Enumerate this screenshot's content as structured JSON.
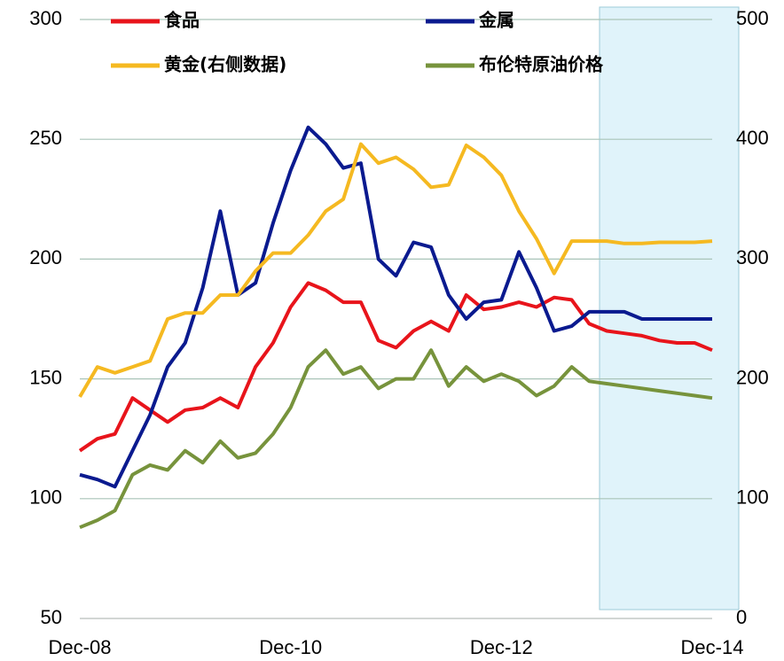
{
  "chart_data": {
    "type": "line",
    "categories": [
      "Dec-08",
      null,
      null,
      null,
      null,
      null,
      null,
      null,
      null,
      null,
      null,
      null,
      "Dec-10",
      null,
      null,
      null,
      null,
      null,
      null,
      null,
      null,
      null,
      null,
      null,
      "Dec-12",
      null,
      null,
      null,
      null,
      null,
      null,
      null,
      null,
      null,
      null,
      null,
      "Dec-14"
    ],
    "series": [
      {
        "name": "食品",
        "color": "#e8141b",
        "values": [
          120,
          125,
          127,
          142,
          137,
          132,
          137,
          138,
          142,
          138,
          155,
          165,
          180,
          190,
          187,
          182,
          182,
          166,
          163,
          170,
          174,
          170,
          185,
          179,
          180,
          182,
          180,
          184,
          183,
          173,
          170,
          169,
          168,
          166,
          165,
          165,
          162
        ]
      },
      {
        "name": "金属",
        "color": "#0a1a8f",
        "values": [
          110,
          108,
          105,
          120,
          135,
          155,
          165,
          188,
          220,
          185,
          190,
          215,
          237,
          255,
          248,
          238,
          240,
          200,
          193,
          207,
          205,
          185,
          175,
          182,
          183,
          203,
          188,
          170,
          172,
          178,
          178,
          178,
          175,
          175,
          175,
          175,
          175
        ]
      },
      {
        "name": "黄金(右侧数据)",
        "color": "#f5b921",
        "axis": "y2",
        "values": [
          185,
          210,
          205,
          210,
          215,
          250,
          255,
          255,
          270,
          270,
          290,
          305,
          305,
          320,
          340,
          350,
          396,
          380,
          385,
          375,
          360,
          362,
          395,
          385,
          370,
          340,
          317,
          288,
          315,
          315,
          315,
          313,
          313,
          314,
          314,
          314,
          315
        ]
      },
      {
        "name": "布伦特原油价格",
        "color": "#77933c",
        "values": [
          88,
          91,
          95,
          110,
          114,
          112,
          120,
          115,
          124,
          117,
          119,
          127,
          138,
          155,
          162,
          152,
          155,
          146,
          150,
          150,
          162,
          147,
          155,
          149,
          152,
          149,
          143,
          147,
          155,
          149,
          148,
          147,
          146,
          145,
          144,
          143,
          142
        ]
      }
    ],
    "ylim": [
      50,
      300
    ],
    "yticks": [
      50,
      100,
      150,
      200,
      250,
      300
    ],
    "y2lim": [
      0,
      500
    ],
    "y2ticks": [
      0,
      100,
      200,
      300,
      400,
      500
    ],
    "grid": true,
    "legend": "top"
  }
}
